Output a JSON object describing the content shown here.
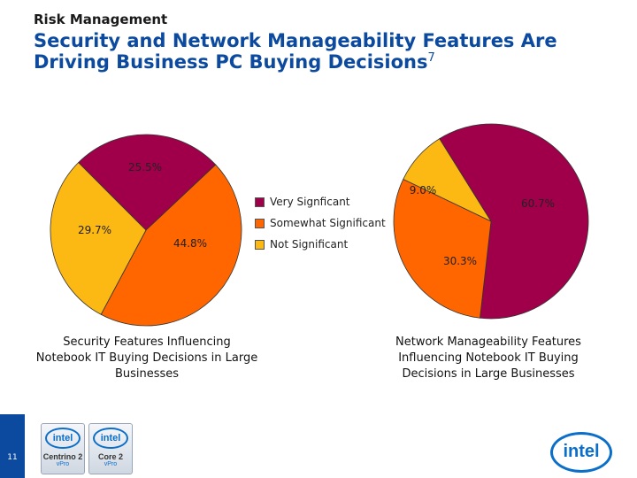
{
  "header": {
    "section": "Risk Management",
    "title": "Security and Network Manageability Features Are Driving Business PC Buying Decisions",
    "footnote": "7"
  },
  "legend": {
    "items": [
      {
        "label": "Very Signficant",
        "color": "#a0004a"
      },
      {
        "label": "Somewhat Significant",
        "color": "#ff6600"
      },
      {
        "label": "Not Significant",
        "color": "#fcb813"
      }
    ]
  },
  "chart_data": [
    {
      "type": "pie",
      "title": "Security Features Influencing Notebook IT Buying Decisions in Large Businesses",
      "categories": [
        "Very Signficant",
        "Somewhat Significant",
        "Not Significant"
      ],
      "values": [
        25.5,
        44.8,
        29.7
      ],
      "labels": [
        "25.5%",
        "44.8%",
        "29.7%"
      ],
      "colors": [
        "#a0004a",
        "#ff6600",
        "#fcb813"
      ]
    },
    {
      "type": "pie",
      "title": "Network Manageability Features Influencing Notebook IT Buying Decisions in Large Businesses",
      "categories": [
        "Very Signficant",
        "Somewhat Significant",
        "Not Significant"
      ],
      "values": [
        60.7,
        30.3,
        9.0
      ],
      "labels": [
        "60.7%",
        "30.3%",
        "9.0%"
      ],
      "colors": [
        "#a0004a",
        "#ff6600",
        "#fcb813"
      ]
    }
  ],
  "footer": {
    "page_number": "11",
    "badges": [
      {
        "brand": "intel",
        "name": "Centrino 2",
        "sub": "vPro"
      },
      {
        "brand": "intel",
        "name": "Core 2",
        "sub": "vPro"
      }
    ],
    "logo": "intel"
  }
}
